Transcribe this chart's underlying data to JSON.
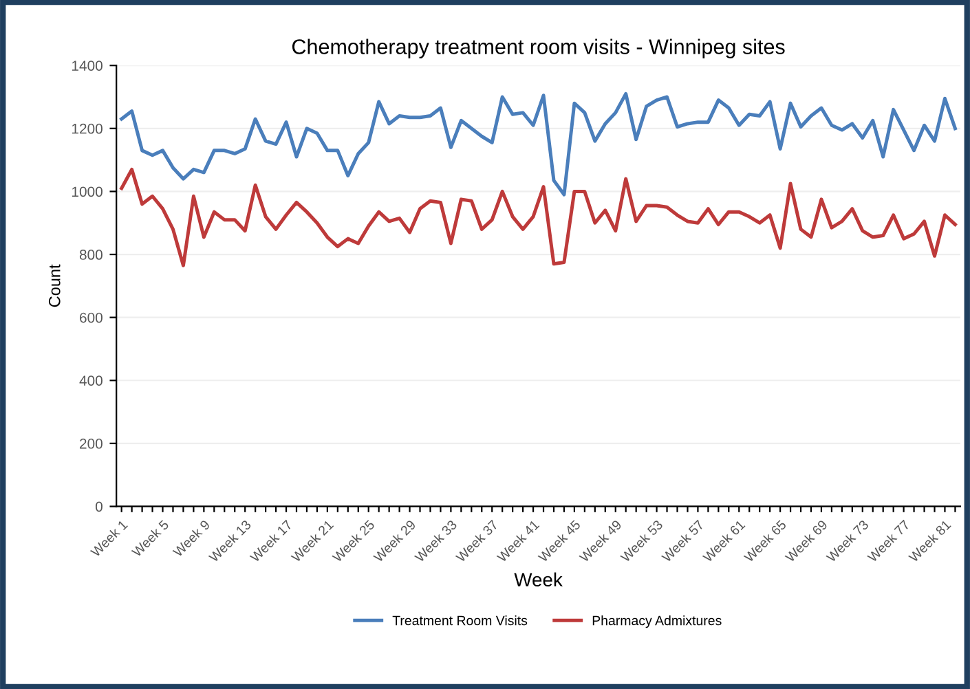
{
  "chart_data": {
    "type": "line",
    "title": "Chemotherapy treatment room visits - Winnipeg sites",
    "xlabel": "Week",
    "ylabel": "Count",
    "categories": [
      "Week 1",
      null,
      null,
      null,
      "Week 5",
      null,
      null,
      null,
      "Week 9",
      null,
      null,
      null,
      "Week 13",
      null,
      null,
      null,
      "Week 17",
      null,
      null,
      null,
      "Week 21",
      null,
      null,
      null,
      "Week 25",
      null,
      null,
      null,
      "Week 29",
      null,
      null,
      null,
      "Week 33",
      null,
      null,
      null,
      "Week 37",
      null,
      null,
      null,
      "Week 41",
      null,
      null,
      null,
      "Week 45",
      null,
      null,
      null,
      "Week 49",
      null,
      null,
      null,
      "Week 53",
      null,
      null,
      null,
      "Week 57",
      null,
      null,
      null,
      "Week 61",
      null,
      null,
      null,
      "Week 65",
      null,
      null,
      null,
      "Week 69",
      null,
      null,
      null,
      "Week 73",
      null,
      null,
      null,
      "Week 77",
      null,
      null,
      null,
      "Week 81",
      null
    ],
    "series": [
      {
        "name": "Treatment Room Visits",
        "color": "#4a7ebb",
        "values": [
          1230,
          1255,
          1130,
          1115,
          1130,
          1075,
          1040,
          1070,
          1060,
          1130,
          1130,
          1120,
          1135,
          1230,
          1160,
          1150,
          1220,
          1110,
          1200,
          1185,
          1130,
          1130,
          1050,
          1120,
          1155,
          1285,
          1215,
          1240,
          1235,
          1235,
          1240,
          1265,
          1140,
          1225,
          1200,
          1175,
          1155,
          1300,
          1245,
          1250,
          1210,
          1305,
          1035,
          990,
          1280,
          1250,
          1160,
          1215,
          1250,
          1310,
          1165,
          1270,
          1290,
          1300,
          1205,
          1215,
          1220,
          1220,
          1290,
          1265,
          1210,
          1245,
          1240,
          1285,
          1135,
          1280,
          1205,
          1240,
          1265,
          1210,
          1195,
          1215,
          1170,
          1225,
          1110,
          1260,
          1195,
          1130,
          1210,
          1160,
          1295,
          1200
        ]
      },
      {
        "name": "Pharmacy Admixtures",
        "color": "#be3a3a",
        "values": [
          1010,
          1070,
          960,
          985,
          945,
          880,
          765,
          985,
          855,
          935,
          910,
          910,
          875,
          1020,
          920,
          880,
          925,
          965,
          935,
          900,
          855,
          825,
          850,
          835,
          890,
          935,
          905,
          915,
          870,
          945,
          970,
          965,
          835,
          975,
          970,
          880,
          910,
          1000,
          920,
          880,
          920,
          1015,
          770,
          775,
          1000,
          1000,
          900,
          940,
          875,
          1040,
          905,
          955,
          955,
          950,
          925,
          905,
          900,
          945,
          895,
          935,
          935,
          920,
          900,
          925,
          820,
          1025,
          880,
          855,
          975,
          885,
          905,
          945,
          875,
          855,
          860,
          925,
          850,
          865,
          905,
          795,
          925,
          895
        ]
      }
    ],
    "ylim": [
      0,
      1400
    ],
    "yticks": [
      0,
      200,
      400,
      600,
      800,
      1000,
      1200,
      1400
    ],
    "grid": "y",
    "legend": "bottom",
    "line_style": "solid",
    "marker": "none"
  }
}
